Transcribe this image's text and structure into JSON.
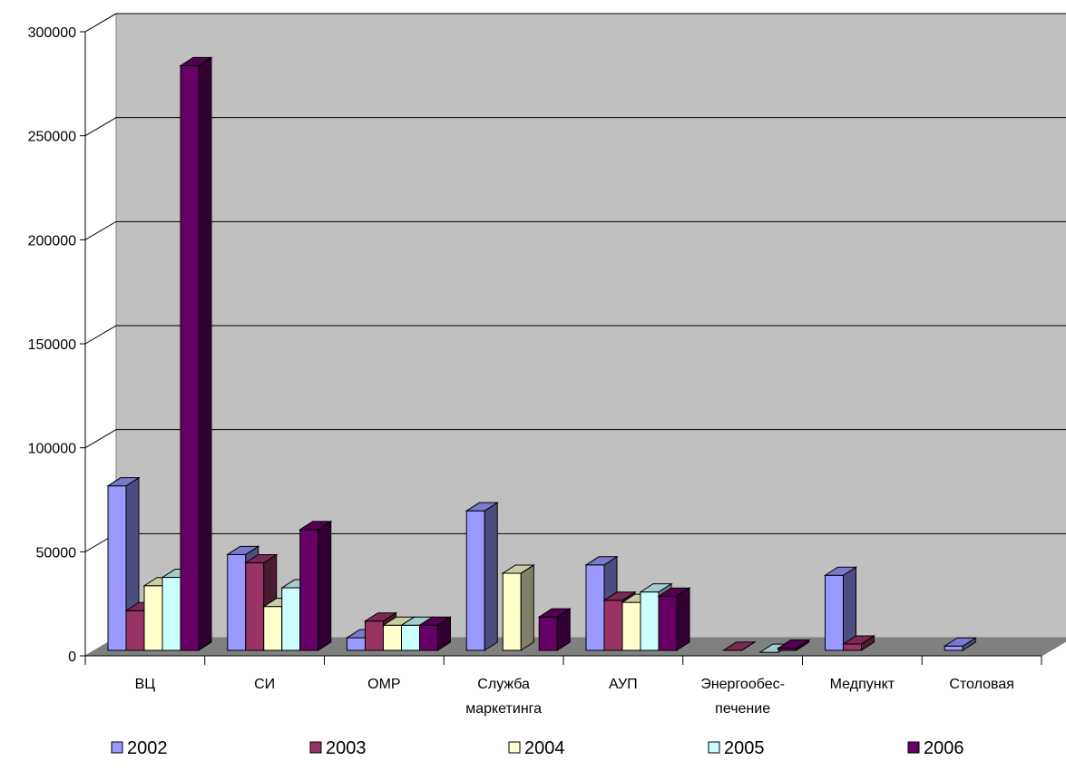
{
  "chart_data": {
    "type": "bar",
    "title": "",
    "xlabel": "",
    "ylabel": "",
    "ylim": [
      0,
      300000
    ],
    "yticks": [
      "0",
      "50000",
      "100000",
      "150000",
      "200000",
      "250000",
      "300000"
    ],
    "grid": true,
    "legend_position": "bottom",
    "categories": [
      [
        "ВЦ"
      ],
      [
        "СИ"
      ],
      [
        "ОМР"
      ],
      [
        "Служба",
        "маркетинга"
      ],
      [
        "АУП"
      ],
      [
        "Энергообес-",
        "печение"
      ],
      [
        "Медпункт"
      ],
      [
        "Столовая"
      ]
    ],
    "series": [
      {
        "name": "2002",
        "color": "#9999ff",
        "values": [
          83000,
          50000,
          10000,
          71000,
          45000,
          null,
          40000,
          6000
        ]
      },
      {
        "name": "2003",
        "color": "#993366",
        "values": [
          23000,
          46000,
          18000,
          null,
          28000,
          4000,
          7000,
          null
        ]
      },
      {
        "name": "2004",
        "color": "#ffffcc",
        "values": [
          35000,
          25000,
          16000,
          41000,
          27000,
          null,
          null,
          null
        ]
      },
      {
        "name": "2005",
        "color": "#ccffff",
        "values": [
          39000,
          34000,
          16000,
          null,
          32000,
          3000,
          null,
          null
        ]
      },
      {
        "name": "2006",
        "color": "#660066",
        "values": [
          285000,
          62000,
          16000,
          20000,
          30000,
          5000,
          null,
          null
        ]
      }
    ]
  }
}
